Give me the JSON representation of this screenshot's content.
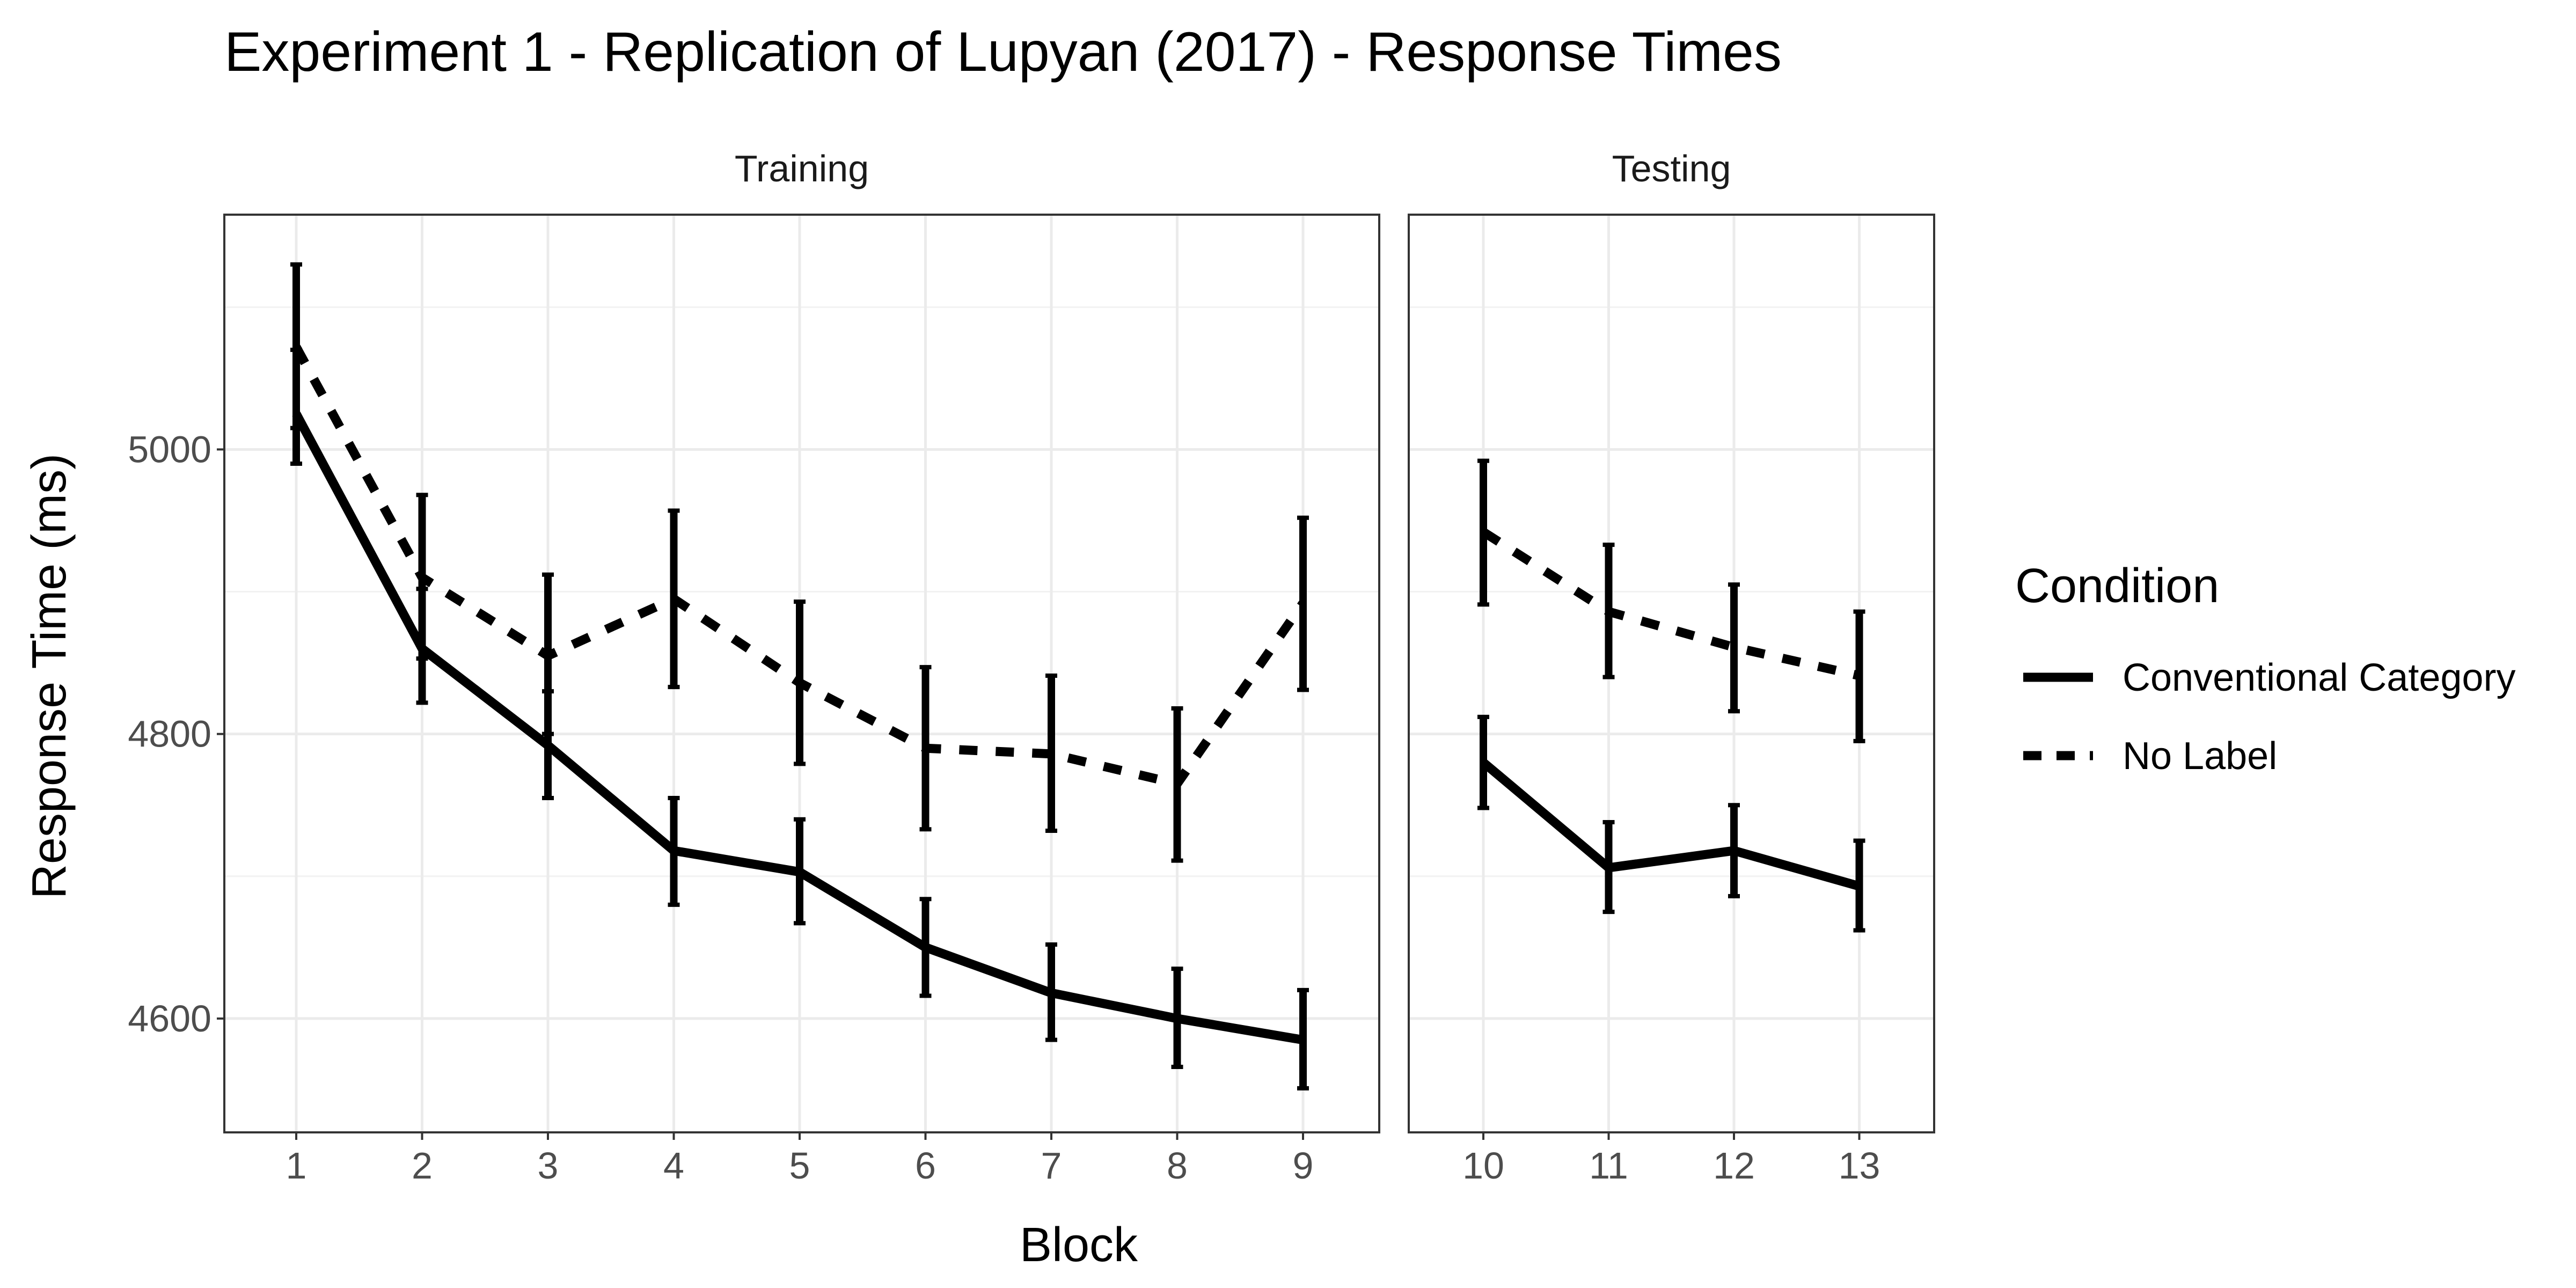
{
  "chart_data": {
    "type": "line",
    "title": "Experiment 1 - Replication of Lupyan (2017) - Response Times",
    "xlabel": "Block",
    "ylabel": "Response Time (ms)",
    "y_ticks": [
      4600,
      4800,
      5000
    ],
    "ylim": [
      4520,
      5165
    ],
    "grid": true,
    "legend": {
      "title": "Condition",
      "position": "right"
    },
    "panels": [
      {
        "label": "Training",
        "x": [
          1,
          2,
          3,
          4,
          5,
          6,
          7,
          8,
          9
        ]
      },
      {
        "label": "Testing",
        "x": [
          10,
          11,
          12,
          13
        ]
      }
    ],
    "series": [
      {
        "name": "Conventional Category",
        "linetype": "solid",
        "color": "#000000",
        "x": [
          1,
          2,
          3,
          4,
          5,
          6,
          7,
          8,
          9,
          10,
          11,
          12,
          13
        ],
        "values": [
          5025,
          4860,
          4792,
          4718,
          4703,
          4650,
          4618,
          4600,
          4585,
          4780,
          4706,
          4718,
          4693
        ],
        "lower": [
          4990,
          4822,
          4755,
          4680,
          4667,
          4616,
          4585,
          4566,
          4551,
          4748,
          4675,
          4686,
          4662
        ],
        "upper": [
          5070,
          4902,
          4830,
          4755,
          4740,
          4684,
          4652,
          4635,
          4620,
          4812,
          4738,
          4750,
          4725
        ]
      },
      {
        "name": "No Label",
        "linetype": "dashed",
        "color": "#000000",
        "x": [
          1,
          2,
          3,
          4,
          5,
          6,
          7,
          8,
          9,
          10,
          11,
          12,
          13
        ],
        "values": [
          5072,
          4910,
          4855,
          4895,
          4836,
          4790,
          4786,
          4765,
          4892,
          4942,
          4886,
          4861,
          4841
        ],
        "lower": [
          5015,
          4853,
          4800,
          4833,
          4779,
          4733,
          4732,
          4711,
          4831,
          4891,
          4840,
          4816,
          4795
        ],
        "upper": [
          5130,
          4968,
          4912,
          4957,
          4893,
          4847,
          4841,
          4818,
          4952,
          4992,
          4933,
          4905,
          4886
        ]
      }
    ]
  }
}
